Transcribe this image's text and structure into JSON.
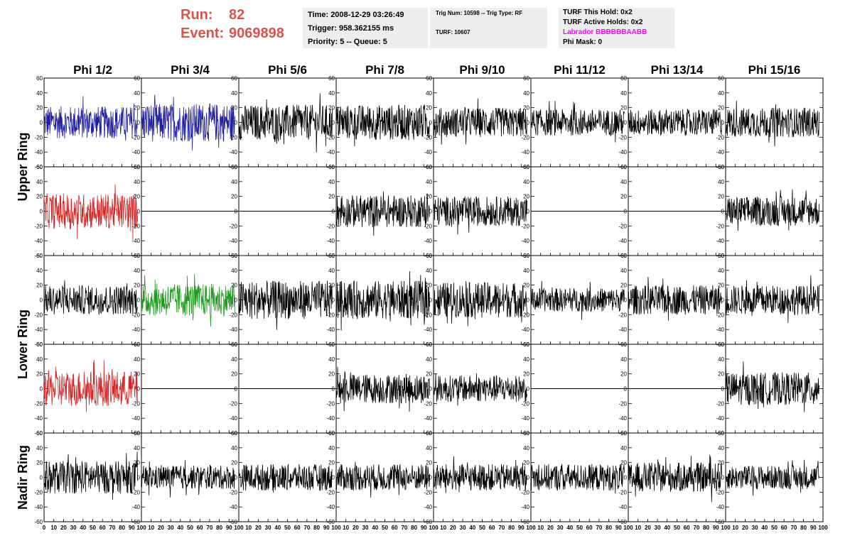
{
  "header": {
    "run_label": "Run:",
    "run_value": "82",
    "event_label": "Event:",
    "event_value": "9069898",
    "time": "Time: 2008-12-29 03:26:49",
    "trigger": "Trigger: 958.362155 ms",
    "priority": "Priority: 5 -- Queue: 5",
    "trig_num": "Trig Num: 10598 -- Trig Type: RF",
    "turf": "TURF: 10607",
    "turf_hold": "TURF This Hold: 0x2",
    "turf_active": "TURF Active Holds: 0x2",
    "labrador": "Labrador BBBBBBAABB",
    "phi_mask": "Phi Mask: 0"
  },
  "colors": {
    "run_text": "#d9534f",
    "labrador_text": "#ff00ff",
    "trace_default": "#000000",
    "trace_blue": "#1f1fa0",
    "trace_red": "#d62728",
    "trace_green": "#1f9a1f"
  },
  "chart_data": {
    "type": "line",
    "columns": [
      "Phi 1/2",
      "Phi 3/4",
      "Phi 5/6",
      "Phi 7/8",
      "Phi 9/10",
      "Phi 11/12",
      "Phi 13/14",
      "Phi 15/16"
    ],
    "rows": [
      "Upper Ring",
      "Lower Ring",
      "Nadir Ring"
    ],
    "xlim": [
      0,
      100
    ],
    "ylim": [
      -60,
      60
    ],
    "x_ticks": [
      0,
      10,
      20,
      30,
      40,
      50,
      60,
      70,
      80,
      90,
      100
    ],
    "x_tick_labels": [
      "0",
      "10",
      "20",
      "30",
      "40",
      "50",
      "60",
      "70",
      "80",
      "90",
      "100"
    ],
    "y_ticks": [
      -60,
      -40,
      -20,
      0,
      20,
      40,
      60
    ],
    "y_tick_labels": [
      "-60",
      "-40",
      "-20",
      "0",
      "20",
      "40",
      "60"
    ],
    "panels": [
      [
        {
          "color": "blue",
          "amp": 22,
          "flat": false
        },
        {
          "color": "blue",
          "amp": 26,
          "flat": false
        },
        {
          "color": "black",
          "amp": 24,
          "flat": false
        },
        {
          "color": "black",
          "amp": 24,
          "flat": false
        },
        {
          "color": "black",
          "amp": 20,
          "flat": false
        },
        {
          "color": "black",
          "amp": 18,
          "flat": false
        },
        {
          "color": "black",
          "amp": 18,
          "flat": false
        },
        {
          "color": "black",
          "amp": 20,
          "flat": false
        }
      ],
      [
        {
          "color": "red",
          "amp": 24,
          "flat": false
        },
        {
          "color": "black",
          "amp": 0,
          "flat": true
        },
        {
          "color": "black",
          "amp": 0,
          "flat": true
        },
        {
          "color": "black",
          "amp": 22,
          "flat": false
        },
        {
          "color": "black",
          "amp": 20,
          "flat": false
        },
        {
          "color": "black",
          "amp": 0,
          "flat": true
        },
        {
          "color": "black",
          "amp": 0,
          "flat": true
        },
        {
          "color": "black",
          "amp": 20,
          "flat": false
        }
      ],
      [
        {
          "color": "black",
          "amp": 20,
          "flat": false
        },
        {
          "color": "green",
          "amp": 22,
          "flat": false
        },
        {
          "color": "black",
          "amp": 26,
          "flat": false
        },
        {
          "color": "black",
          "amp": 26,
          "flat": false
        },
        {
          "color": "black",
          "amp": 24,
          "flat": false
        },
        {
          "color": "black",
          "amp": 16,
          "flat": false
        },
        {
          "color": "black",
          "amp": 20,
          "flat": false
        },
        {
          "color": "black",
          "amp": 20,
          "flat": false
        }
      ],
      [
        {
          "color": "red",
          "amp": 24,
          "flat": false
        },
        {
          "color": "black",
          "amp": 0,
          "flat": true
        },
        {
          "color": "black",
          "amp": 0,
          "flat": true
        },
        {
          "color": "black",
          "amp": 20,
          "flat": false
        },
        {
          "color": "black",
          "amp": 18,
          "flat": false
        },
        {
          "color": "black",
          "amp": 0,
          "flat": true
        },
        {
          "color": "black",
          "amp": 0,
          "flat": true
        },
        {
          "color": "black",
          "amp": 22,
          "flat": false
        }
      ],
      [
        {
          "color": "black",
          "amp": 22,
          "flat": false
        },
        {
          "color": "black",
          "amp": 16,
          "flat": false
        },
        {
          "color": "black",
          "amp": 18,
          "flat": false
        },
        {
          "color": "black",
          "amp": 18,
          "flat": false
        },
        {
          "color": "black",
          "amp": 18,
          "flat": false
        },
        {
          "color": "black",
          "amp": 18,
          "flat": false
        },
        {
          "color": "black",
          "amp": 20,
          "flat": false
        },
        {
          "color": "black",
          "amp": 16,
          "flat": false
        }
      ]
    ]
  }
}
